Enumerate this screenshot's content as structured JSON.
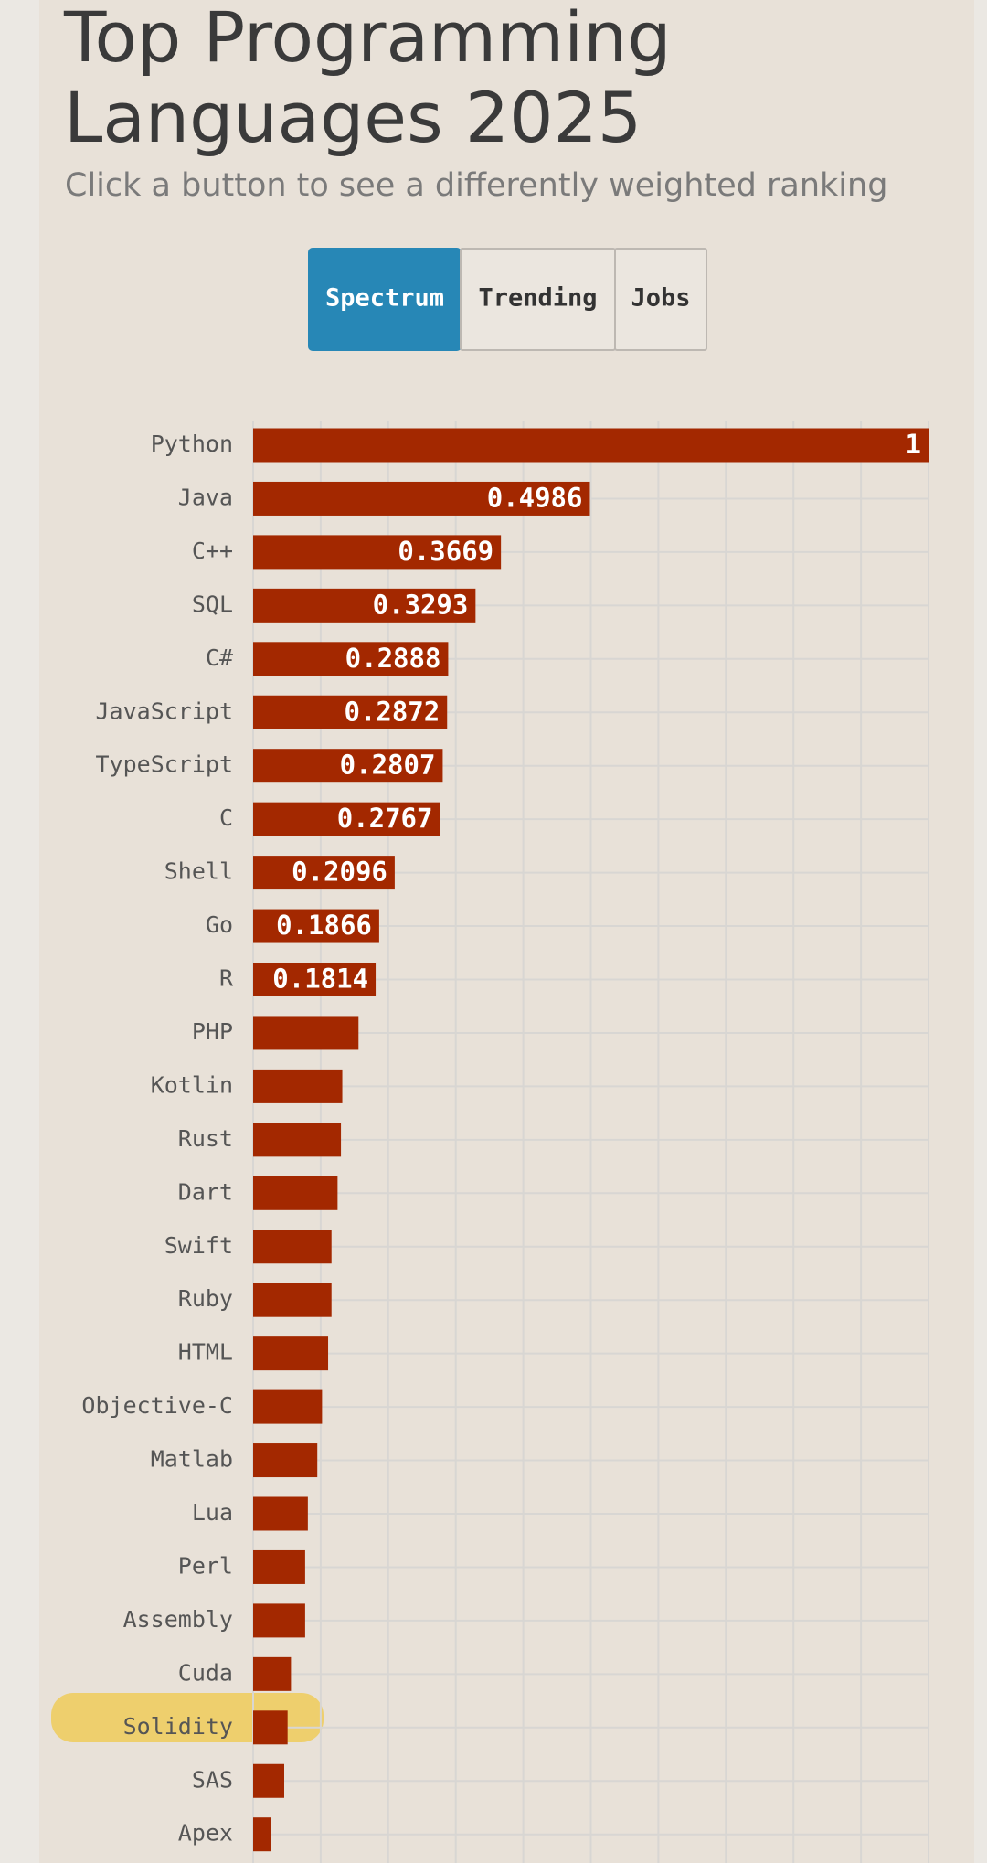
{
  "chart_data": {
    "type": "hbar",
    "title_lines": [
      "Top Programming",
      "Languages 2025"
    ],
    "subtitle": "Click a button to see a differently weighted ranking",
    "buttons": [
      "Spectrum",
      "Trending",
      "Jobs"
    ],
    "categories": [
      "Python",
      "Java",
      "C++",
      "SQL",
      "C#",
      "JavaScript",
      "TypeScript",
      "C",
      "Shell",
      "Go",
      "R",
      "PHP",
      "Kotlin",
      "Rust",
      "Dart",
      "Swift",
      "Ruby",
      "HTML",
      "Objective-C",
      "Matlab",
      "Lua",
      "Perl",
      "Assembly",
      "Cuda",
      "Solidity",
      "SAS",
      "Apex"
    ],
    "values": [
      1,
      0.4986,
      0.3669,
      0.3293,
      0.2888,
      0.2872,
      0.2807,
      0.2767,
      0.2096,
      0.1866,
      0.1814,
      0.156,
      0.132,
      0.13,
      0.125,
      0.116,
      0.116,
      0.111,
      0.102,
      0.095,
      0.081,
      0.077,
      0.077,
      0.056,
      0.051,
      0.046,
      0.026
    ],
    "value_labels": [
      "1",
      "0.4986",
      "0.3669",
      "0.3293",
      "0.2888",
      "0.2872",
      "0.2807",
      "0.2767",
      "0.2096",
      "0.1866",
      "0.1814",
      null,
      null,
      null,
      null,
      null,
      null,
      null,
      null,
      null,
      null,
      null,
      null,
      null,
      null,
      null,
      null
    ],
    "color": "#a32800",
    "xlim": [
      0,
      1
    ],
    "xticks": [
      0,
      0.1,
      0.2,
      0.3,
      0.4,
      0.5,
      0.6,
      0.7,
      0.8,
      0.9,
      1
    ],
    "grid": true
  }
}
